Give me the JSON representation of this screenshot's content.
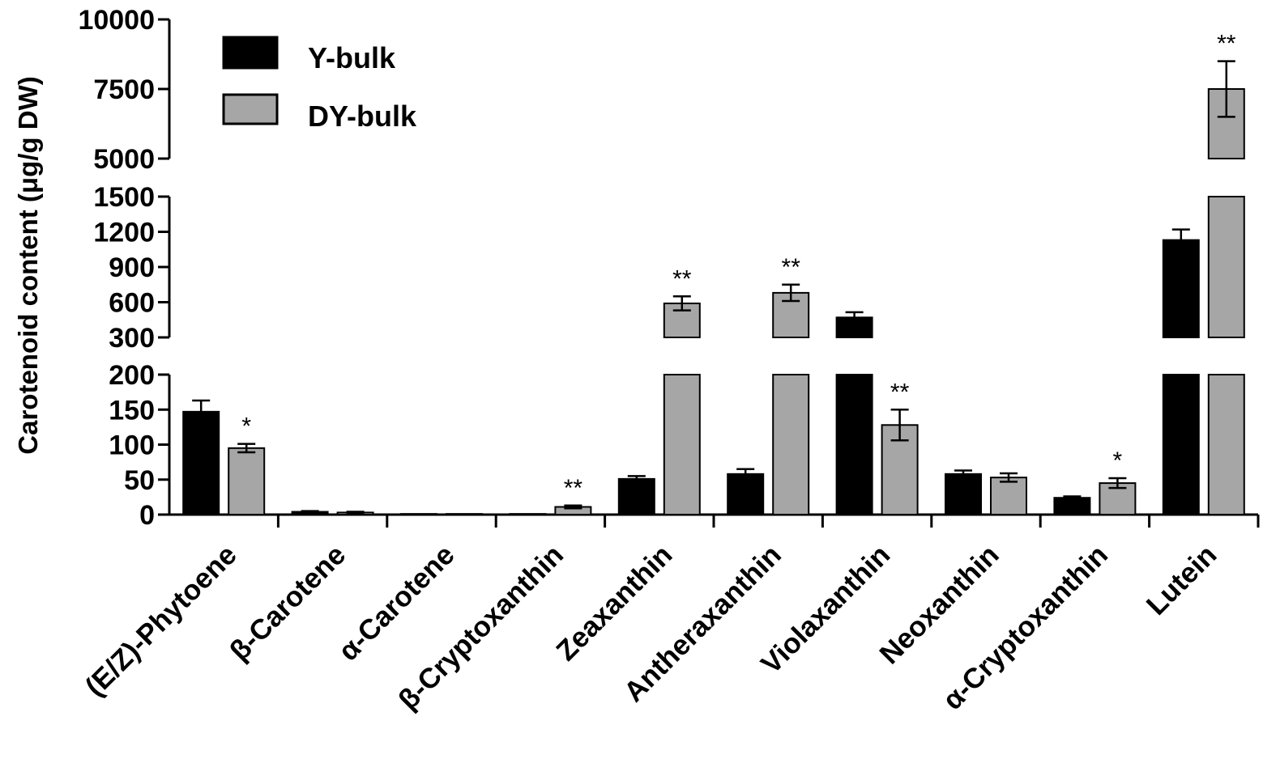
{
  "chart_data": {
    "type": "bar",
    "ylabel": "Carotenoid content (μg/g DW)",
    "xlabel": "",
    "categories": [
      "(E/Z)-Phytoene",
      "β-Carotene",
      "α-Carotene",
      "β-Cryptoxanthin",
      "Zeaxanthin",
      "Antheraxanthin",
      "Violaxanthin",
      "Neoxanthin",
      "α-Cryptoxanthin",
      "Lutein"
    ],
    "series": [
      {
        "name": "Y-bulk",
        "color": "#000000",
        "values": [
          147,
          4,
          1,
          1,
          51,
          58,
          470,
          58,
          24,
          1130
        ],
        "errors": [
          16,
          1,
          0.5,
          0.5,
          4,
          7,
          45,
          5,
          2,
          90
        ],
        "significance": [
          "",
          "",
          "",
          "",
          "",
          "",
          "",
          "",
          "",
          ""
        ]
      },
      {
        "name": "DY-bulk",
        "color": "#a6a6a6",
        "values": [
          95,
          3,
          1,
          11,
          590,
          680,
          128,
          53,
          45,
          7500
        ],
        "errors": [
          6,
          1,
          0.5,
          2,
          60,
          70,
          22,
          6,
          7,
          1000
        ],
        "significance": [
          "*",
          "",
          "",
          "**",
          "**",
          "**",
          "**",
          "",
          "*",
          "**"
        ]
      }
    ],
    "y_axis": {
      "broken": true,
      "segments": [
        {
          "range": [
            0,
            200
          ],
          "ticks": [
            "0",
            "50",
            "100",
            "150",
            "200"
          ]
        },
        {
          "range": [
            300,
            1500
          ],
          "ticks": [
            "300",
            "600",
            "900",
            "1200",
            "1500"
          ]
        },
        {
          "range": [
            5000,
            10000
          ],
          "ticks": [
            "5000",
            "7500",
            "10000"
          ]
        }
      ]
    },
    "legend": {
      "placement": "top-left",
      "entries": [
        "Y-bulk",
        "DY-bulk"
      ]
    },
    "grid": false,
    "error_bars": true
  }
}
